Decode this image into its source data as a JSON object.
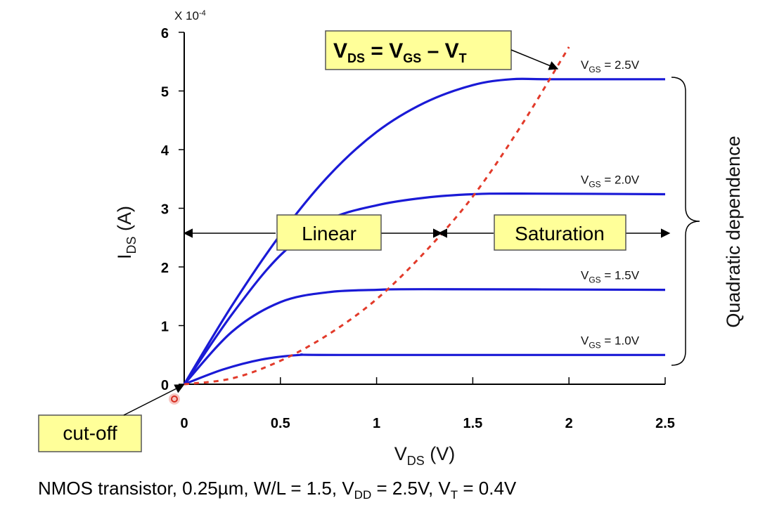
{
  "chart_data": {
    "type": "line",
    "multiplier_label": "X 10",
    "multiplier_exp": "-4",
    "xlim": [
      0,
      2.5
    ],
    "ylim": [
      0,
      6
    ],
    "xticks": [
      "0",
      "0.5",
      "1",
      "1.5",
      "2",
      "2.5"
    ],
    "yticks": [
      "0",
      "1",
      "2",
      "3",
      "4",
      "5",
      "6"
    ],
    "xlabel": {
      "main": "V",
      "sub": "DS",
      "unit": " (V)"
    },
    "ylabel": {
      "main": "I",
      "sub": "DS",
      "unit": " (A)"
    },
    "series": [
      {
        "name": "VGS = 2.5V",
        "label_main": "V",
        "label_sub": "GS",
        "label_rest": " = 2.5V",
        "x": [
          0,
          0.25,
          0.5,
          0.75,
          1.0,
          1.25,
          1.5,
          1.7,
          1.9,
          2.5
        ],
        "y": [
          0,
          1.35,
          2.55,
          3.55,
          4.3,
          4.8,
          5.1,
          5.2,
          5.2,
          5.2
        ]
      },
      {
        "name": "VGS = 2.0V",
        "label_main": "V",
        "label_sub": "GS",
        "label_rest": " = 2.0V",
        "x": [
          0,
          0.25,
          0.5,
          0.75,
          1.0,
          1.25,
          1.5,
          1.75,
          2.5
        ],
        "y": [
          0,
          1.2,
          2.2,
          2.8,
          3.05,
          3.18,
          3.24,
          3.25,
          3.24
        ]
      },
      {
        "name": "VGS = 1.5V",
        "label_main": "V",
        "label_sub": "GS",
        "label_rest": " = 1.5V",
        "x": [
          0,
          0.25,
          0.5,
          0.75,
          1.0,
          1.25,
          2.5
        ],
        "y": [
          0,
          0.9,
          1.4,
          1.57,
          1.61,
          1.62,
          1.61
        ]
      },
      {
        "name": "VGS = 1.0V",
        "label_main": "V",
        "label_sub": "GS",
        "label_rest": " = 1.0V",
        "x": [
          0,
          0.2,
          0.4,
          0.6,
          0.8,
          2.5
        ],
        "y": [
          0,
          0.25,
          0.42,
          0.5,
          0.5,
          0.5
        ]
      }
    ],
    "boundary": {
      "x": [
        0,
        0.25,
        0.5,
        0.75,
        1.0,
        1.25,
        1.5,
        1.75,
        2.0
      ],
      "y": [
        0,
        0.1,
        0.4,
        0.85,
        1.45,
        2.25,
        3.2,
        4.4,
        5.75
      ]
    },
    "equation": {
      "vds": "V",
      "vds_sub": "DS",
      "eq": " = ",
      "vgs": "V",
      "vgs_sub": "GS",
      "minus": " – ",
      "vt": "V",
      "vt_sub": "T"
    },
    "region_labels": {
      "linear": "Linear",
      "saturation": "Saturation",
      "cutoff": "cut-off"
    },
    "brace_label": "Quadratic dependence",
    "colors": {
      "curves": "#1a1ad6",
      "boundary": "#e23a2a",
      "box_fill": "#ffff99"
    }
  },
  "caption": {
    "p1": "NMOS transistor, 0.25µm, W/L = 1.5, V",
    "s1": "DD",
    "p2": " = 2.5V, V",
    "s2": "T",
    "p3": " = 0.4V"
  }
}
